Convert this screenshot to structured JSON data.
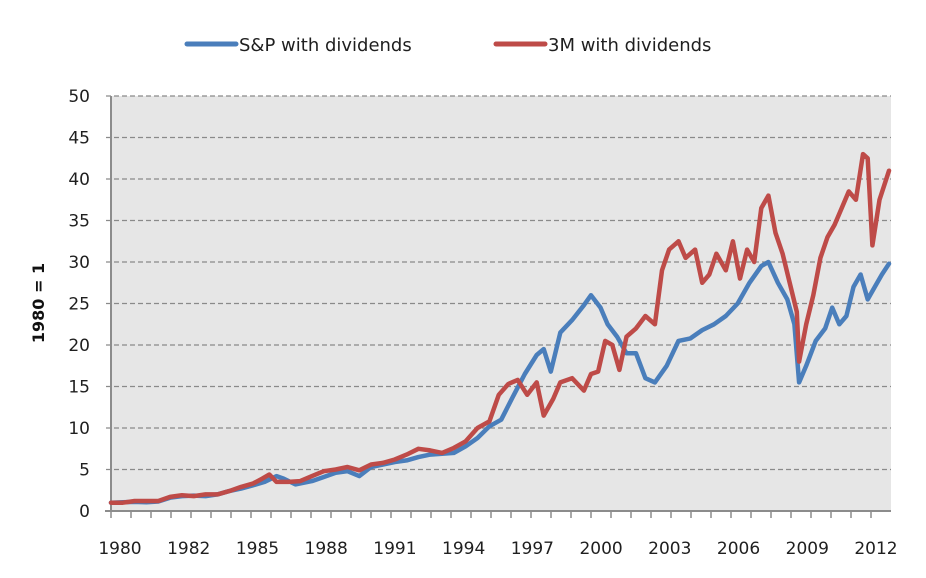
{
  "chart_data": {
    "type": "line",
    "title": "",
    "xlabel": "",
    "ylabel": "1980 = 1",
    "ylim": [
      0,
      50
    ],
    "yticks": [
      0,
      5,
      10,
      15,
      20,
      25,
      30,
      35,
      40,
      45,
      50
    ],
    "xlim": [
      1980,
      2012.9
    ],
    "xtick_labels": [
      "1980",
      "1982",
      "1985",
      "1988",
      "1991",
      "1994",
      "1997",
      "2000",
      "2003",
      "2006",
      "2009",
      "2012"
    ],
    "grid": true,
    "legend_position": "top",
    "series": [
      {
        "name": "S&P with dividends",
        "color": "#4a7ebb",
        "x": [
          1980,
          1980.5,
          1981,
          1981.5,
          1982,
          1982.5,
          1983,
          1983.5,
          1984,
          1984.5,
          1985,
          1985.5,
          1986,
          1986.5,
          1987,
          1987.3,
          1987.8,
          1988.5,
          1989,
          1989.5,
          1990,
          1990.5,
          1991,
          1991.5,
          1992,
          1992.5,
          1993,
          1993.5,
          1994,
          1994.5,
          1995,
          1995.5,
          1996,
          1996.5,
          1997,
          1997.5,
          1998,
          1998.3,
          1998.6,
          1999,
          1999.5,
          2000,
          2000.3,
          2000.7,
          2001,
          2001.4,
          2001.8,
          2002.2,
          2002.6,
          2003,
          2003.5,
          2004,
          2004.5,
          2005,
          2005.5,
          2006,
          2006.5,
          2007,
          2007.5,
          2007.8,
          2008.2,
          2008.6,
          2008.9,
          2009.1,
          2009.4,
          2009.8,
          2010.2,
          2010.5,
          2010.8,
          2011.1,
          2011.4,
          2011.7,
          2012,
          2012.3,
          2012.6,
          2012.9
        ],
        "values": [
          1,
          1.05,
          1.1,
          1.05,
          1.15,
          1.6,
          1.8,
          1.85,
          1.8,
          2.0,
          2.4,
          2.7,
          3.1,
          3.5,
          4.2,
          3.9,
          3.2,
          3.6,
          4.1,
          4.6,
          4.8,
          4.2,
          5.3,
          5.6,
          5.9,
          6.1,
          6.5,
          6.8,
          6.9,
          7.0,
          7.8,
          8.8,
          10.2,
          11.0,
          13.8,
          16.5,
          18.8,
          19.5,
          16.8,
          21.5,
          23.0,
          24.8,
          26.0,
          24.5,
          22.5,
          21.0,
          19.0,
          19.0,
          16.0,
          15.5,
          17.5,
          20.5,
          20.8,
          21.8,
          22.5,
          23.5,
          25.0,
          27.5,
          29.5,
          30.0,
          27.5,
          25.5,
          22.5,
          15.5,
          17.5,
          20.5,
          22.0,
          24.5,
          22.5,
          23.5,
          27.0,
          28.5,
          25.5,
          27.0,
          28.5,
          29.8
        ]
      },
      {
        "name": "3M with dividends",
        "color": "#be4b48",
        "x": [
          1980,
          1980.5,
          1981,
          1981.5,
          1982,
          1982.5,
          1983,
          1983.5,
          1984,
          1984.5,
          1985,
          1985.5,
          1986,
          1986.4,
          1986.7,
          1987,
          1987.5,
          1988,
          1988.5,
          1989,
          1989.5,
          1990,
          1990.5,
          1991,
          1991.5,
          1992,
          1992.5,
          1993,
          1993.5,
          1994,
          1994.5,
          1995,
          1995.5,
          1996,
          1996.4,
          1996.8,
          1997.2,
          1997.6,
          1998,
          1998.3,
          1998.7,
          1999,
          1999.5,
          2000,
          2000.3,
          2000.6,
          2000.9,
          2001.2,
          2001.5,
          2001.8,
          2002.2,
          2002.6,
          2003,
          2003.3,
          2003.6,
          2004,
          2004.3,
          2004.7,
          2005,
          2005.3,
          2005.6,
          2006,
          2006.3,
          2006.6,
          2006.9,
          2007.2,
          2007.5,
          2007.8,
          2008.1,
          2008.4,
          2008.7,
          2009.0,
          2009.1,
          2009.4,
          2009.7,
          2010.0,
          2010.3,
          2010.6,
          2010.9,
          2011.2,
          2011.5,
          2011.8,
          2012.0,
          2012.2,
          2012.5,
          2012.9
        ],
        "values": [
          1,
          1.0,
          1.2,
          1.2,
          1.2,
          1.7,
          1.9,
          1.8,
          2.0,
          2.0,
          2.4,
          2.9,
          3.3,
          3.9,
          4.4,
          3.5,
          3.5,
          3.6,
          4.2,
          4.8,
          5.0,
          5.3,
          4.9,
          5.6,
          5.8,
          6.2,
          6.8,
          7.5,
          7.3,
          7.0,
          7.6,
          8.4,
          10.0,
          10.8,
          14.0,
          15.3,
          15.8,
          14.0,
          15.5,
          11.5,
          13.5,
          15.5,
          16.0,
          14.5,
          16.5,
          16.8,
          20.5,
          20.0,
          17.0,
          21.0,
          22.0,
          23.5,
          22.5,
          29.0,
          31.5,
          32.5,
          30.5,
          31.5,
          27.5,
          28.5,
          31.0,
          29.0,
          32.5,
          28.0,
          31.5,
          30.0,
          36.5,
          38.0,
          33.5,
          31.0,
          27.5,
          24.0,
          18.0,
          22.5,
          26.0,
          30.5,
          33.0,
          34.5,
          36.5,
          38.5,
          37.5,
          43.0,
          42.5,
          32.0,
          37.5,
          41.0
        ]
      }
    ]
  }
}
